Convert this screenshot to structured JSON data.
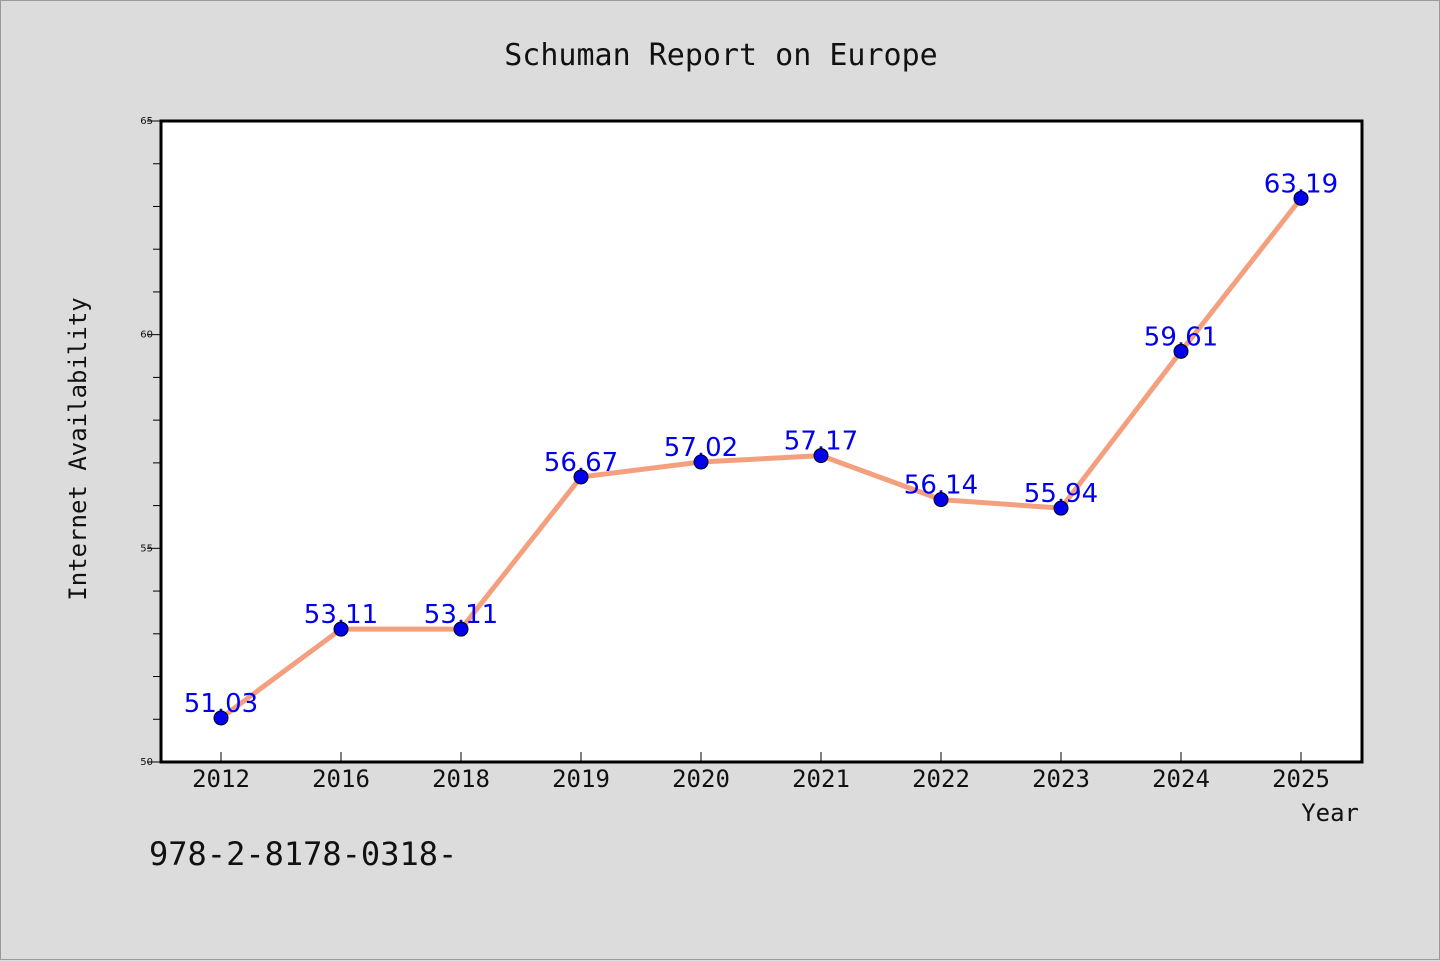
{
  "chart_data": {
    "type": "line",
    "title": "Schuman Report on Europe",
    "xlabel": "Year",
    "ylabel": "Internet Availability",
    "categories": [
      "2012",
      "2016",
      "2018",
      "2019",
      "2020",
      "2021",
      "2022",
      "2023",
      "2024",
      "2025"
    ],
    "series": [
      {
        "values": [
          51.03,
          53.11,
          53.11,
          56.67,
          57.02,
          57.17,
          56.14,
          55.94,
          59.61,
          63.19
        ],
        "data_labels": [
          "51.03",
          "53.11",
          "53.11",
          "56.67",
          "57.02",
          "57.17",
          "56.14",
          "55.94",
          "59.61",
          "63.19"
        ]
      }
    ],
    "ylim": [
      50,
      65
    ],
    "yticks": [
      "50",
      "55",
      "60",
      "65"
    ],
    "grid": false,
    "legend": "none",
    "colors": {
      "line": "#f4a07e",
      "marker": "#0000ee",
      "data_label": "#0000ee",
      "plot_background": "#ffffff",
      "page_background": "#dcdcdc"
    }
  },
  "footnote": "978-2-8178-0318-"
}
